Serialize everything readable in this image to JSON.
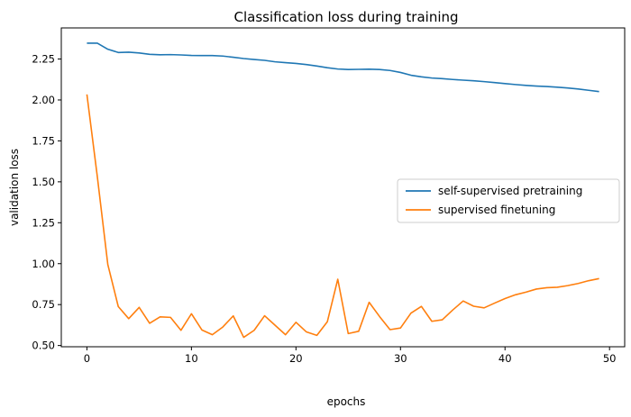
{
  "chart_data": {
    "type": "line",
    "title": "Classification loss during training",
    "xlabel": "epochs",
    "ylabel": "validation loss",
    "xlim": [
      -2.45,
      51.45
    ],
    "ylim": [
      0.4925,
      2.44
    ],
    "xticks": [
      0,
      10,
      20,
      30,
      40,
      50
    ],
    "xtick_labels": [
      "0",
      "10",
      "20",
      "30",
      "40",
      "50"
    ],
    "yticks": [
      0.5,
      0.75,
      1.0,
      1.25,
      1.5,
      1.75,
      2.0,
      2.25
    ],
    "ytick_labels": [
      "0.50",
      "0.75",
      "1.00",
      "1.25",
      "1.50",
      "1.75",
      "2.00",
      "2.25"
    ],
    "grid": false,
    "legend_position": "center-right",
    "x": [
      0,
      1,
      2,
      3,
      4,
      5,
      6,
      7,
      8,
      9,
      10,
      11,
      12,
      13,
      14,
      15,
      16,
      17,
      18,
      19,
      20,
      21,
      22,
      23,
      24,
      25,
      26,
      27,
      28,
      29,
      30,
      31,
      32,
      33,
      34,
      35,
      36,
      37,
      38,
      39,
      40,
      41,
      42,
      43,
      44,
      45,
      46,
      47,
      48,
      49
    ],
    "series": [
      {
        "name": "self-supervised pretraining",
        "color": "#1f77b4",
        "values": [
          2.347,
          2.347,
          2.31,
          2.29,
          2.292,
          2.287,
          2.279,
          2.276,
          2.277,
          2.275,
          2.272,
          2.271,
          2.271,
          2.268,
          2.261,
          2.253,
          2.247,
          2.242,
          2.233,
          2.228,
          2.223,
          2.216,
          2.207,
          2.197,
          2.189,
          2.186,
          2.187,
          2.188,
          2.186,
          2.18,
          2.168,
          2.151,
          2.141,
          2.134,
          2.13,
          2.125,
          2.121,
          2.117,
          2.112,
          2.106,
          2.1,
          2.094,
          2.089,
          2.085,
          2.082,
          2.078,
          2.073,
          2.067,
          2.059,
          2.051
        ]
      },
      {
        "name": "supervised finetuning",
        "color": "#ff7f0e",
        "values": [
          2.034,
          1.53,
          0.995,
          0.738,
          0.664,
          0.733,
          0.636,
          0.675,
          0.672,
          0.593,
          0.694,
          0.595,
          0.566,
          0.613,
          0.681,
          0.55,
          0.593,
          0.682,
          0.624,
          0.566,
          0.642,
          0.583,
          0.562,
          0.645,
          0.905,
          0.573,
          0.587,
          0.764,
          0.677,
          0.597,
          0.607,
          0.698,
          0.739,
          0.648,
          0.657,
          0.717,
          0.772,
          0.74,
          0.73,
          0.759,
          0.787,
          0.81,
          0.826,
          0.845,
          0.853,
          0.856,
          0.866,
          0.879,
          0.896,
          0.909
        ]
      }
    ]
  }
}
